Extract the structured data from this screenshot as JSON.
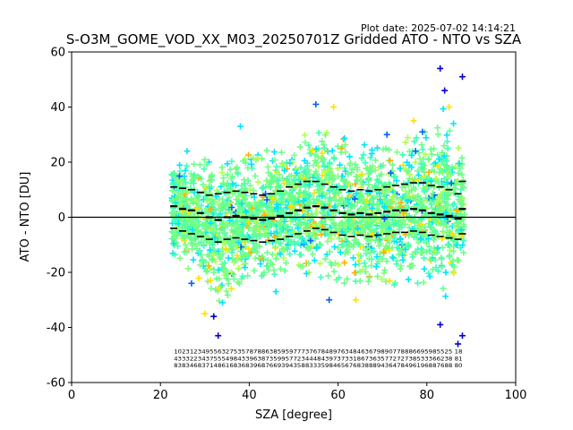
{
  "plot_date": "Plot date: 2025-07-02 14:14:21",
  "colors": {
    "scatter": [
      "#00e5ff",
      "#40ffb8",
      "#6cff88",
      "#80ff80",
      "#b0ff50",
      "#ffe000",
      "#ffb000",
      "#0060ff",
      "#0000cc"
    ],
    "dominant": "#6cff88",
    "median": "#000000",
    "zero_line": "#000000"
  },
  "chart_data": {
    "type": "scatter",
    "title": "S-O3M_GOME_VOD_XX_M03_20250701Z Gridded ATO - NTO vs SZA",
    "xlabel": "SZA [degree]",
    "ylabel": "ATO - NTO [DU]",
    "xlim": [
      0,
      100
    ],
    "ylim": [
      -60,
      60
    ],
    "xticks": [
      0,
      20,
      40,
      60,
      80,
      100
    ],
    "yticks": [
      -60,
      -40,
      -20,
      0,
      20,
      40,
      60
    ],
    "grid": false,
    "legend": "none",
    "marker": "plus",
    "scatter_range": {
      "x": [
        22.5,
        88.5
      ],
      "spread_upper_sample": [
        [
          23,
          20
        ],
        [
          30,
          22
        ],
        [
          40,
          23
        ],
        [
          50,
          28
        ],
        [
          55,
          32
        ],
        [
          60,
          30
        ],
        [
          70,
          25
        ],
        [
          80,
          32
        ],
        [
          84,
          40
        ],
        [
          88,
          22
        ]
      ],
      "spread_lower_sample": [
        [
          23,
          -15
        ],
        [
          30,
          -25
        ],
        [
          33,
          -32
        ],
        [
          40,
          -24
        ],
        [
          50,
          -20
        ],
        [
          60,
          -24
        ],
        [
          70,
          -25
        ],
        [
          80,
          -26
        ],
        [
          85,
          -30
        ],
        [
          88,
          -18
        ]
      ]
    },
    "outliers": [
      [
        33,
        -43
      ],
      [
        32,
        -36
      ],
      [
        30,
        -35
      ],
      [
        34,
        -31
      ],
      [
        27,
        -24
      ],
      [
        36,
        -26
      ],
      [
        46,
        -27
      ],
      [
        58,
        -30
      ],
      [
        88,
        51
      ],
      [
        83,
        54
      ],
      [
        84,
        46
      ],
      [
        85,
        40
      ],
      [
        86,
        34
      ],
      [
        79,
        31
      ],
      [
        77,
        35
      ],
      [
        26,
        24
      ],
      [
        55,
        41
      ],
      [
        59,
        40
      ],
      [
        38,
        33
      ],
      [
        71,
        30
      ],
      [
        83,
        -39
      ],
      [
        87,
        -46
      ],
      [
        88,
        -43
      ],
      [
        64,
        -30
      ]
    ],
    "median_series": {
      "x": [
        23,
        25,
        27,
        29,
        31,
        33,
        35,
        37,
        39,
        41,
        43,
        45,
        47,
        49,
        51,
        53,
        55,
        57,
        59,
        61,
        63,
        65,
        67,
        69,
        71,
        73,
        75,
        77,
        79,
        81,
        83,
        85,
        87,
        88
      ],
      "y": [
        4,
        3,
        2.5,
        1.5,
        0,
        -1,
        0,
        0.5,
        0,
        -0.5,
        -1,
        -0.5,
        0.5,
        1.5,
        2.5,
        3.5,
        4,
        3.5,
        2.5,
        1.5,
        1,
        1.5,
        1,
        1.5,
        2,
        2.5,
        2.5,
        3,
        2.5,
        1.5,
        1,
        0.5,
        -0.5,
        3
      ]
    },
    "upper_series": {
      "x": [
        23,
        25,
        27,
        29,
        31,
        33,
        35,
        37,
        39,
        41,
        43,
        45,
        47,
        49,
        51,
        53,
        55,
        57,
        59,
        61,
        63,
        65,
        67,
        69,
        71,
        73,
        75,
        77,
        79,
        81,
        83,
        85,
        87,
        88
      ],
      "y": [
        11,
        10.5,
        10,
        9,
        8,
        8.5,
        9,
        9.5,
        9,
        8.5,
        8,
        8.5,
        9.5,
        11,
        12,
        13,
        13,
        12,
        11,
        10,
        9.5,
        10,
        9.5,
        10,
        11,
        11.5,
        12,
        12.5,
        12.5,
        11.5,
        11,
        10,
        8.5,
        13
      ]
    },
    "lower_series": {
      "x": [
        23,
        25,
        27,
        29,
        31,
        33,
        35,
        37,
        39,
        41,
        43,
        45,
        47,
        49,
        51,
        53,
        55,
        57,
        59,
        61,
        63,
        65,
        67,
        69,
        71,
        73,
        75,
        77,
        79,
        81,
        83,
        85,
        87,
        88
      ],
      "y": [
        -4,
        -5,
        -6,
        -7,
        -8,
        -9,
        -8,
        -7.5,
        -8,
        -8.5,
        -9,
        -8.5,
        -8,
        -7,
        -6,
        -5,
        -4,
        -4.5,
        -5.5,
        -6.5,
        -7,
        -6.5,
        -7,
        -6.5,
        -6,
        -5.5,
        -5.5,
        -5,
        -5.5,
        -6.5,
        -7,
        -7.5,
        -8,
        -6
      ]
    },
    "zero_line": 0,
    "count_rows": {
      "x_start": 23,
      "x_end": 88,
      "y_rows": [
        -49.5,
        -52,
        -54.5
      ],
      "rows": [
        "1023123495563275357878863859597773767848976348463679890778886695985525 18",
        "4333223437555498433963873599577234448439737331867363577272738533366238 81",
        "8383468371486168368396876693943588333598465676838889436478496196887688 80"
      ]
    }
  }
}
